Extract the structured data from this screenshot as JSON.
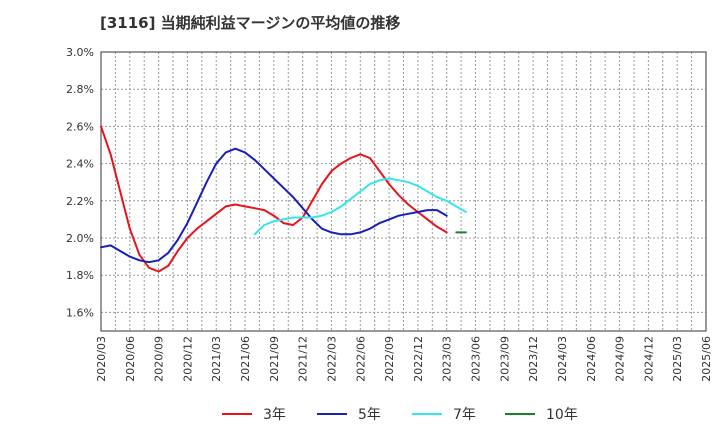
{
  "chart_data": {
    "type": "line",
    "title": "[3116]  当期純利益マージンの平均値の推移",
    "xlabel": "",
    "ylabel": "",
    "ylim": [
      1.5,
      3.0
    ],
    "y_ticks": [
      {
        "value": 1.6,
        "label": "1.6%"
      },
      {
        "value": 1.8,
        "label": "1.8%"
      },
      {
        "value": 2.0,
        "label": "2.0%"
      },
      {
        "value": 2.2,
        "label": "2.2%"
      },
      {
        "value": 2.4,
        "label": "2.4%"
      },
      {
        "value": 2.6,
        "label": "2.6%"
      },
      {
        "value": 2.8,
        "label": "2.8%"
      },
      {
        "value": 3.0,
        "label": "3.0%"
      }
    ],
    "x_tick_labels": [
      "2020/03",
      "2020/06",
      "2020/09",
      "2020/12",
      "2021/03",
      "2021/06",
      "2021/09",
      "2021/12",
      "2022/03",
      "2022/06",
      "2022/09",
      "2022/12",
      "2023/03",
      "2023/06",
      "2023/09",
      "2023/12",
      "2024/03",
      "2024/06",
      "2024/09",
      "2024/12",
      "2025/03",
      "2025/06"
    ],
    "grid": true,
    "legend_position": "bottom",
    "series": [
      {
        "name": "3年",
        "color": "#e8141b",
        "values": [
          [
            0,
            2.6
          ],
          [
            1,
            2.45
          ],
          [
            2,
            2.25
          ],
          [
            3,
            2.05
          ],
          [
            4,
            1.91
          ],
          [
            5,
            1.84
          ],
          [
            6,
            1.82
          ],
          [
            7,
            1.85
          ],
          [
            8,
            1.93
          ],
          [
            9,
            2.0
          ],
          [
            10,
            2.05
          ],
          [
            11,
            2.09
          ],
          [
            12,
            2.13
          ],
          [
            13,
            2.17
          ],
          [
            14,
            2.18
          ],
          [
            15,
            2.17
          ],
          [
            16,
            2.16
          ],
          [
            17,
            2.15
          ],
          [
            18,
            2.12
          ],
          [
            19,
            2.08
          ],
          [
            20,
            2.07
          ],
          [
            21,
            2.11
          ],
          [
            22,
            2.2
          ],
          [
            23,
            2.29
          ],
          [
            24,
            2.36
          ],
          [
            25,
            2.4
          ],
          [
            26,
            2.43
          ],
          [
            27,
            2.45
          ],
          [
            28,
            2.43
          ],
          [
            29,
            2.36
          ],
          [
            30,
            2.29
          ],
          [
            31,
            2.23
          ],
          [
            32,
            2.18
          ],
          [
            33,
            2.14
          ],
          [
            34,
            2.1
          ],
          [
            35,
            2.06
          ],
          [
            36,
            2.03
          ]
        ]
      },
      {
        "name": "5年",
        "color": "#1a1fb8",
        "values": [
          [
            0,
            1.95
          ],
          [
            1,
            1.96
          ],
          [
            2,
            1.93
          ],
          [
            3,
            1.9
          ],
          [
            4,
            1.88
          ],
          [
            5,
            1.87
          ],
          [
            6,
            1.88
          ],
          [
            7,
            1.92
          ],
          [
            8,
            1.99
          ],
          [
            9,
            2.08
          ],
          [
            10,
            2.19
          ],
          [
            11,
            2.3
          ],
          [
            12,
            2.4
          ],
          [
            13,
            2.46
          ],
          [
            14,
            2.48
          ],
          [
            15,
            2.46
          ],
          [
            16,
            2.42
          ],
          [
            17,
            2.37
          ],
          [
            18,
            2.32
          ],
          [
            19,
            2.27
          ],
          [
            20,
            2.22
          ],
          [
            21,
            2.16
          ],
          [
            22,
            2.1
          ],
          [
            23,
            2.05
          ],
          [
            24,
            2.03
          ],
          [
            25,
            2.02
          ],
          [
            26,
            2.02
          ],
          [
            27,
            2.03
          ],
          [
            28,
            2.05
          ],
          [
            29,
            2.08
          ],
          [
            30,
            2.1
          ],
          [
            31,
            2.12
          ],
          [
            32,
            2.13
          ],
          [
            33,
            2.14
          ],
          [
            34,
            2.15
          ],
          [
            35,
            2.15
          ],
          [
            36,
            2.12
          ]
        ]
      },
      {
        "name": "7年",
        "color": "#33e5ee",
        "values": [
          [
            16,
            2.02
          ],
          [
            17,
            2.07
          ],
          [
            18,
            2.09
          ],
          [
            19,
            2.1
          ],
          [
            20,
            2.11
          ],
          [
            21,
            2.11
          ],
          [
            22,
            2.11
          ],
          [
            23,
            2.12
          ],
          [
            24,
            2.14
          ],
          [
            25,
            2.17
          ],
          [
            26,
            2.21
          ],
          [
            27,
            2.25
          ],
          [
            28,
            2.29
          ],
          [
            29,
            2.31
          ],
          [
            30,
            2.32
          ],
          [
            31,
            2.31
          ],
          [
            32,
            2.3
          ],
          [
            33,
            2.28
          ],
          [
            34,
            2.25
          ],
          [
            35,
            2.22
          ],
          [
            36,
            2.2
          ],
          [
            37,
            2.17
          ],
          [
            38,
            2.14
          ]
        ]
      },
      {
        "name": "10年",
        "color": "#1e7f2a",
        "values": [
          [
            37,
            2.03
          ],
          [
            38,
            2.03
          ]
        ]
      }
    ]
  }
}
